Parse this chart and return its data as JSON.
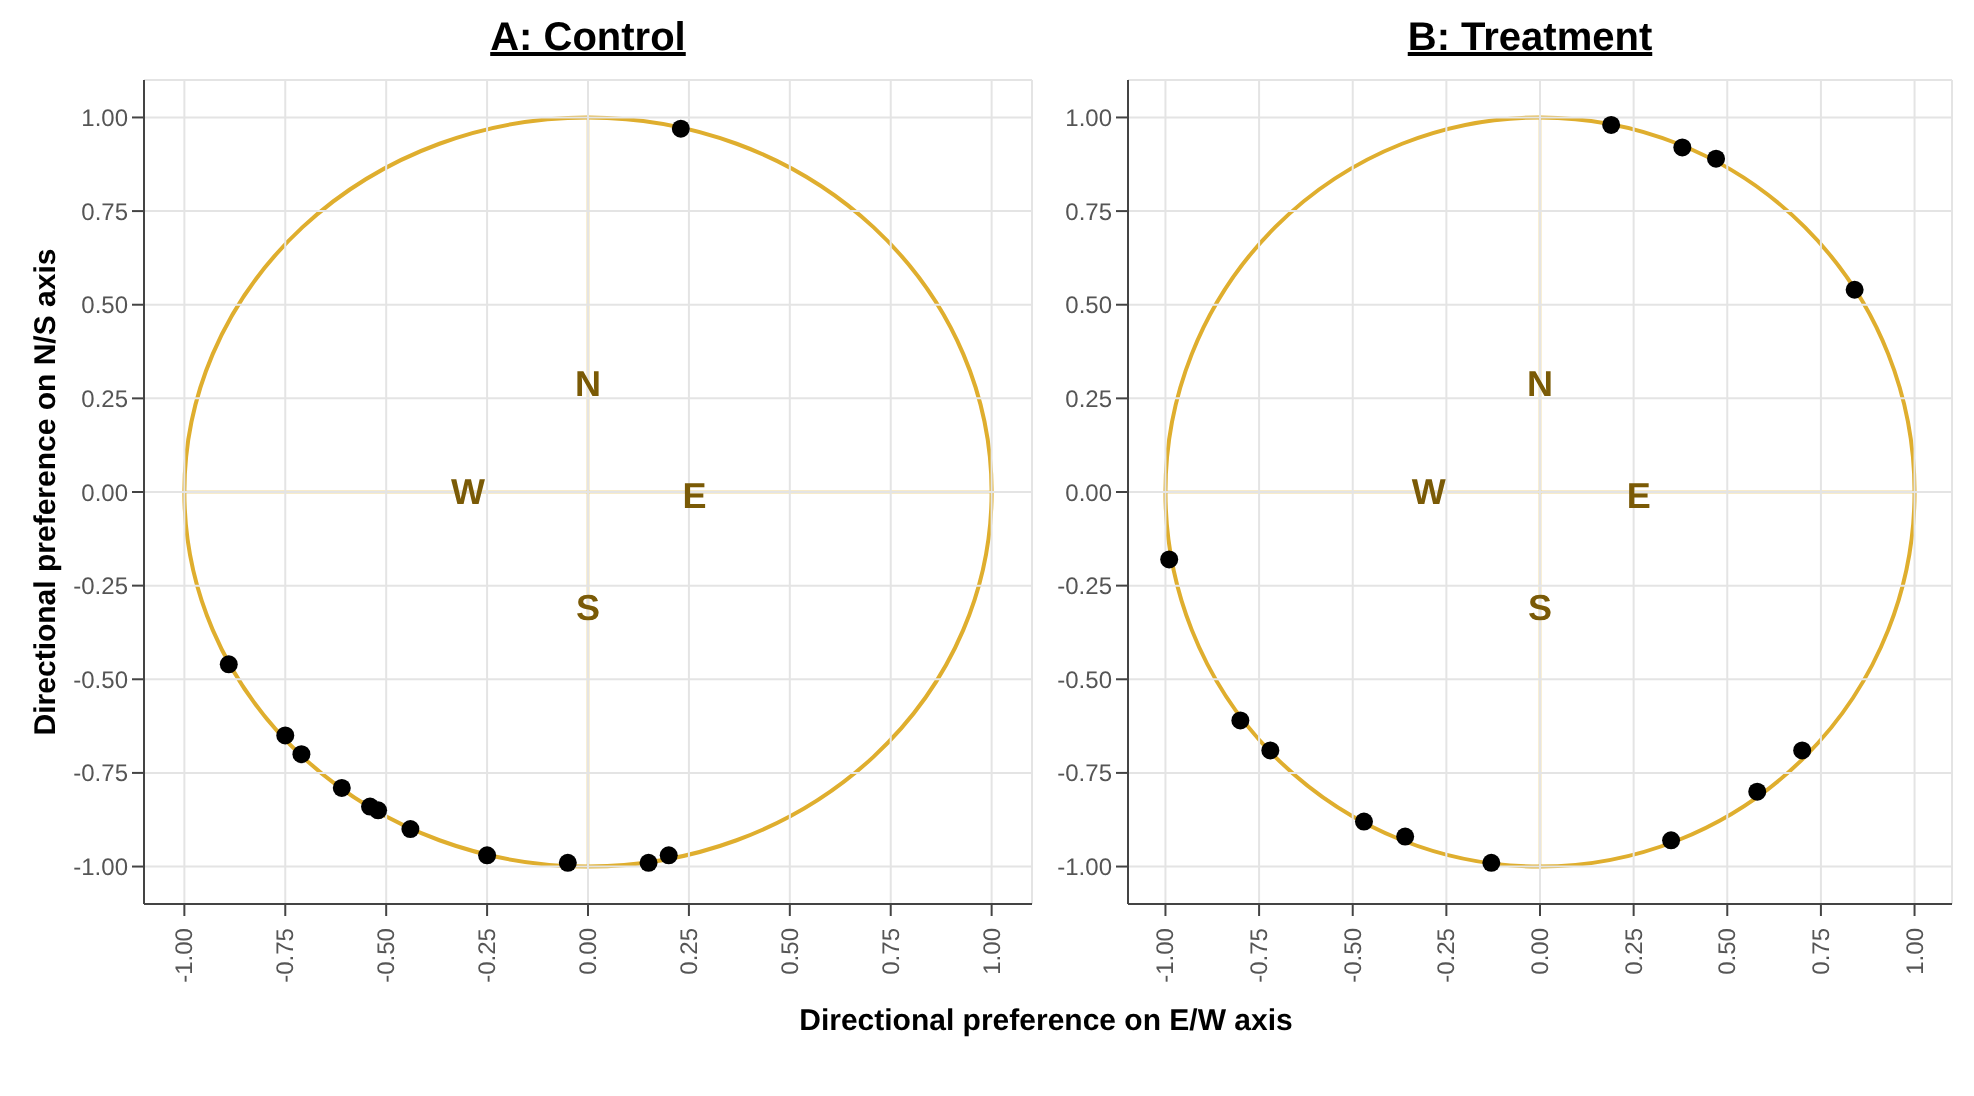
{
  "chart_data": [
    {
      "type": "scatter",
      "title": "A: Control",
      "ylabel": "Directional preference on N/S axis",
      "xlabel": "Directional preference on E/W axis",
      "xlim": [
        -1.1,
        1.1
      ],
      "ylim": [
        -1.1,
        1.1
      ],
      "xticks": [
        {
          "value": -1,
          "label": "-1.00"
        },
        {
          "value": -0.75,
          "label": "-0.75"
        },
        {
          "value": -0.5,
          "label": "-0.50"
        },
        {
          "value": -0.25,
          "label": "-0.25"
        },
        {
          "value": 0,
          "label": "0.00"
        },
        {
          "value": 0.25,
          "label": "0.25"
        },
        {
          "value": 0.5,
          "label": "0.50"
        },
        {
          "value": 0.75,
          "label": "0.75"
        },
        {
          "value": 1,
          "label": "1.00"
        }
      ],
      "yticks": [
        {
          "value": -1,
          "label": "-1.00"
        },
        {
          "value": -0.75,
          "label": "-0.75"
        },
        {
          "value": -0.5,
          "label": "-0.50"
        },
        {
          "value": -0.25,
          "label": "-0.25"
        },
        {
          "value": 0,
          "label": "0.00"
        },
        {
          "value": 0.25,
          "label": "0.25"
        },
        {
          "value": 0.5,
          "label": "0.50"
        },
        {
          "value": 0.75,
          "label": "0.75"
        },
        {
          "value": 1,
          "label": "1.00"
        }
      ],
      "grid": true,
      "series": [
        {
          "type": "scatter",
          "color": "#000000",
          "x": [
            0.23,
            -0.89,
            -0.75,
            -0.71,
            -0.61,
            -0.54,
            -0.52,
            -0.44,
            -0.25,
            -0.05,
            0.15,
            0.2
          ],
          "values": [
            0.97,
            -0.46,
            -0.65,
            -0.7,
            -0.79,
            -0.84,
            -0.85,
            -0.9,
            -0.97,
            -0.99,
            -0.99,
            -0.97
          ]
        }
      ],
      "annotations": [
        "N",
        "W",
        "E",
        "S"
      ]
    },
    {
      "type": "scatter",
      "title": "B: Treatment",
      "xlim": [
        -1.1,
        1.1
      ],
      "ylim": [
        -1.1,
        1.1
      ],
      "xticks": [
        {
          "value": -1,
          "label": "-1.00"
        },
        {
          "value": -0.75,
          "label": "-0.75"
        },
        {
          "value": -0.5,
          "label": "-0.50"
        },
        {
          "value": -0.25,
          "label": "-0.25"
        },
        {
          "value": 0,
          "label": "0.00"
        },
        {
          "value": 0.25,
          "label": "0.25"
        },
        {
          "value": 0.5,
          "label": "0.50"
        },
        {
          "value": 0.75,
          "label": "0.75"
        },
        {
          "value": 1,
          "label": "1.00"
        }
      ],
      "yticks": [
        {
          "value": -1,
          "label": "-1.00"
        },
        {
          "value": -0.75,
          "label": "-0.75"
        },
        {
          "value": -0.5,
          "label": "-0.50"
        },
        {
          "value": -0.25,
          "label": "-0.25"
        },
        {
          "value": 0,
          "label": "0.00"
        },
        {
          "value": 0.25,
          "label": "0.25"
        },
        {
          "value": 0.5,
          "label": "0.50"
        },
        {
          "value": 0.75,
          "label": "0.75"
        },
        {
          "value": 1,
          "label": "1.00"
        }
      ],
      "grid": true,
      "series": [
        {
          "type": "scatter",
          "color": "#000000",
          "x": [
            0.19,
            0.38,
            0.47,
            0.84,
            -0.99,
            -0.8,
            -0.72,
            -0.47,
            -0.36,
            -0.13,
            0.35,
            0.58,
            0.7
          ],
          "values": [
            0.98,
            0.92,
            0.89,
            0.54,
            -0.18,
            -0.61,
            -0.69,
            -0.88,
            -0.92,
            -0.99,
            -0.93,
            -0.8,
            -0.69
          ]
        }
      ],
      "annotations": [
        "N",
        "W",
        "E",
        "S"
      ]
    }
  ]
}
